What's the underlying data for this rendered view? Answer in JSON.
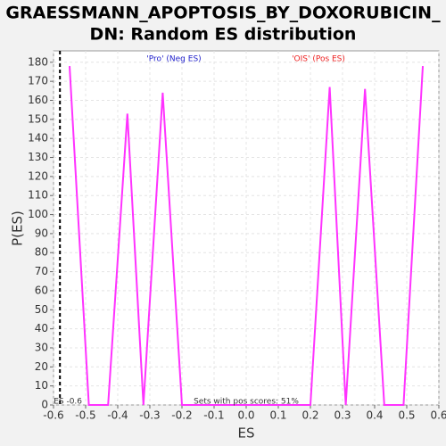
{
  "chart_data": {
    "type": "line",
    "title": "GRAESSMANN_APOPTOSIS_BY_DOXORUBICIN_",
    "title_line2": "DN: Random ES distribution",
    "x_label": "ES",
    "y_label": "P(ES)",
    "x": [
      -0.55,
      -0.49,
      -0.43,
      -0.37,
      -0.32,
      -0.26,
      -0.2,
      0.2,
      0.26,
      0.31,
      0.37,
      0.43,
      0.49,
      0.55
    ],
    "series": [
      {
        "name": "P(ES)",
        "color": "#ff33ff",
        "values": [
          178,
          0,
          0,
          153,
          0,
          164,
          0,
          0,
          167,
          0,
          166,
          0,
          0,
          178
        ]
      }
    ],
    "xlim": [
      -0.6,
      0.6
    ],
    "xticks": [
      -0.6,
      -0.5,
      -0.4,
      -0.3,
      -0.2,
      -0.1,
      {
        "value": 0,
        "label": "0.0"
      },
      0.1,
      0.2,
      0.3,
      0.4,
      0.5,
      0.6
    ],
    "ylim": [
      0,
      186
    ],
    "yticks": [
      0,
      10,
      20,
      30,
      40,
      50,
      60,
      70,
      80,
      90,
      100,
      110,
      120,
      130,
      140,
      150,
      160,
      170,
      180
    ],
    "grid": true,
    "marker_line": {
      "value": -0.58,
      "label": "ES -0.6"
    },
    "annotations": [
      {
        "text": "'Pro' (Neg ES)",
        "color": "#2222cc"
      },
      {
        "text": "'OIS' (Pos ES)",
        "color": "#ee2222"
      },
      {
        "text": "Sets with pos scores: 51%",
        "color": "#333333"
      }
    ]
  }
}
